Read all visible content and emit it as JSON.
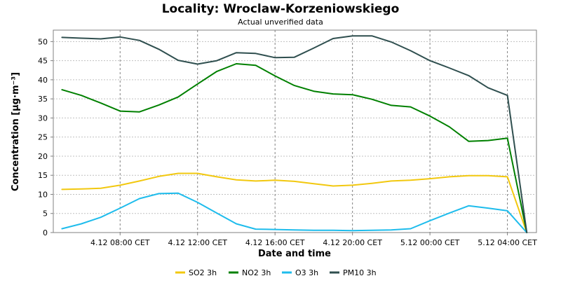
{
  "chart_data": {
    "type": "line",
    "title": "Locality: Wroclaw-Korzeniowskiego",
    "subtitle": "Actual unverified data",
    "xlabel": "Date and time",
    "ylabel": "Concentration [µg·m⁻³]",
    "ylim": [
      0,
      53
    ],
    "yticks": [
      0,
      5,
      10,
      15,
      20,
      25,
      30,
      35,
      40,
      45,
      50
    ],
    "x_ticks": [
      {
        "h": 8,
        "label": "4.12 08:00 CET"
      },
      {
        "h": 12,
        "label": "4.12 12:00 CET"
      },
      {
        "h": 16,
        "label": "4.12 16:00 CET"
      },
      {
        "h": 20,
        "label": "4.12 20:00 CET"
      },
      {
        "h": 24,
        "label": "5.12 00:00 CET"
      },
      {
        "h": 28,
        "label": "5.12 04:00 CET"
      }
    ],
    "x_hours": [
      5,
      6,
      7,
      8,
      9,
      10,
      11,
      12,
      13,
      14,
      15,
      16,
      17,
      18,
      19,
      20,
      21,
      22,
      23,
      24,
      25,
      26,
      27,
      28,
      29
    ],
    "xlim_hours": [
      4.55,
      29.5
    ],
    "grid": true,
    "legend_position": "bottom",
    "series": [
      {
        "name": "SO2 3h",
        "color": "#f2c80f",
        "values": [
          11.3,
          11.4,
          11.6,
          12.4,
          13.5,
          14.7,
          15.5,
          15.5,
          14.6,
          13.8,
          13.5,
          13.7,
          13.4,
          12.8,
          12.2,
          12.4,
          12.9,
          13.5,
          13.7,
          14.1,
          14.6,
          14.9,
          14.9,
          14.6,
          0
        ]
      },
      {
        "name": "NO2 3h",
        "color": "#008000",
        "values": [
          37.4,
          35.9,
          33.9,
          31.8,
          31.6,
          33.4,
          35.5,
          38.9,
          42.2,
          44.2,
          43.8,
          41.0,
          38.5,
          37.0,
          36.3,
          36.1,
          34.9,
          33.3,
          32.9,
          30.5,
          27.7,
          23.9,
          24.1,
          24.7,
          0
        ]
      },
      {
        "name": "O3 3h",
        "color": "#1ebcec",
        "values": [
          1.0,
          2.3,
          4.0,
          6.4,
          8.9,
          10.2,
          10.3,
          7.9,
          5.1,
          2.3,
          0.9,
          0.8,
          0.7,
          0.6,
          0.6,
          0.5,
          0.6,
          0.7,
          1.0,
          3.1,
          5.1,
          7.0,
          6.4,
          5.7,
          0
        ]
      },
      {
        "name": "PM10 3h",
        "color": "#2f4f4f",
        "values": [
          51.1,
          50.9,
          50.7,
          51.2,
          50.3,
          48.0,
          45.1,
          44.1,
          45.0,
          47.1,
          46.9,
          45.8,
          45.9,
          48.3,
          50.8,
          51.5,
          51.5,
          49.9,
          47.6,
          45.0,
          43.1,
          41.1,
          37.9,
          35.9,
          0
        ]
      }
    ]
  }
}
